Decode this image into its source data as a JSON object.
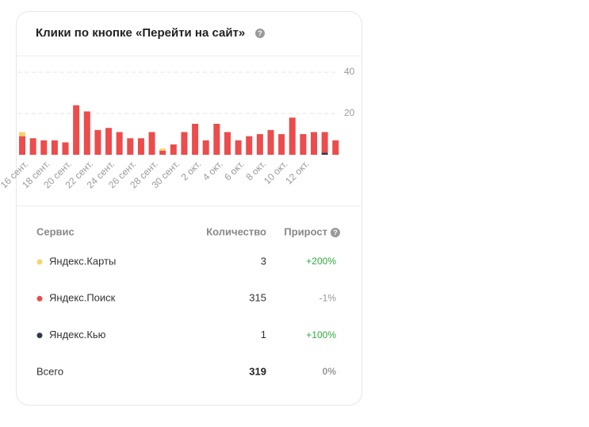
{
  "chart_data": {
    "type": "stacked-bar",
    "title": "Клики по кнопке «Перейти на сайт»",
    "categories": [
      "16 сент.",
      null,
      "18 сент.",
      null,
      "20 сент.",
      null,
      "22 сент.",
      null,
      "24 сент.",
      null,
      "26 сент.",
      null,
      "28 сент.",
      null,
      "30 сент.",
      null,
      "2 окт.",
      null,
      "4 окт.",
      null,
      "6 окт.",
      null,
      "8 окт.",
      null,
      "10 окт.",
      null,
      "12 окт.",
      null,
      null,
      null
    ],
    "series": [
      {
        "name": "Яндекс.Карты",
        "color": "#f7d36b",
        "values": [
          2,
          0,
          0,
          0,
          0,
          0,
          0,
          0,
          0,
          0,
          0,
          0,
          0,
          1,
          0,
          0,
          0,
          0,
          0,
          0,
          0,
          0,
          0,
          0,
          0,
          0,
          0,
          0,
          0,
          0
        ]
      },
      {
        "name": "Яндекс.Поиск",
        "color": "#ec4c4c",
        "values": [
          9,
          8,
          7,
          7,
          6,
          24,
          21,
          12,
          13,
          11,
          8,
          8,
          11,
          2,
          5,
          11,
          15,
          7,
          15,
          11,
          7,
          9,
          10,
          12,
          10,
          18,
          10,
          11,
          10,
          7
        ]
      },
      {
        "name": "Яндекс.Кью",
        "color": "#333a46",
        "values": [
          0,
          0,
          0,
          0,
          0,
          0,
          0,
          0,
          0,
          0,
          0,
          0,
          0,
          0,
          0,
          0,
          0,
          0,
          0,
          0,
          0,
          0,
          0,
          0,
          0,
          0,
          0,
          0,
          1,
          0
        ]
      }
    ],
    "ylim": [
      0,
      40
    ],
    "yticks": [
      20,
      40
    ],
    "grid": true
  },
  "table": {
    "headers": [
      "Сервис",
      "Количество",
      "Прирост"
    ],
    "rows": [
      [
        "Яндекс.Карты",
        3,
        "+200%"
      ],
      [
        "Яндекс.Поиск",
        315,
        "-1%"
      ],
      [
        "Яндекс.Кью",
        1,
        "+100%"
      ]
    ],
    "total": [
      "Всего",
      319,
      "0%"
    ]
  }
}
